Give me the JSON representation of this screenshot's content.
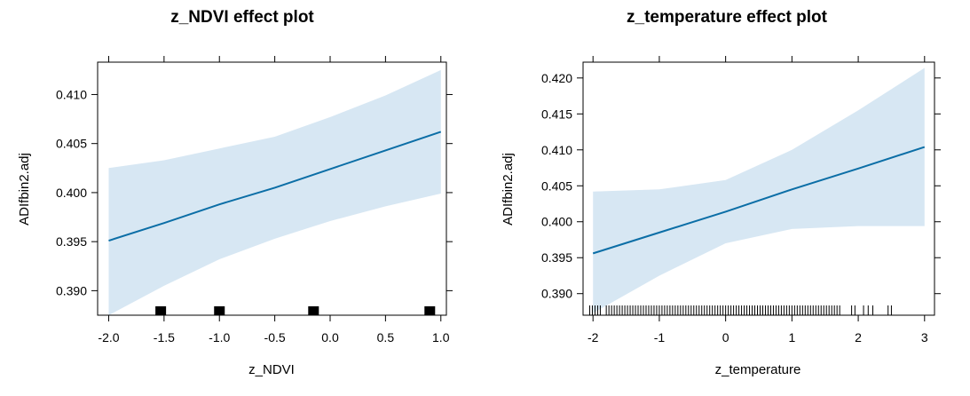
{
  "colors": {
    "band": "#d7e7f3",
    "line": "#0b6ea6",
    "rug": "#000000"
  },
  "chart_data": [
    {
      "type": "line",
      "title": "z_NDVI effect plot",
      "xlabel": "z_NDVI",
      "ylabel": "ADIfbin2.adj",
      "xlim": [
        -2.1,
        1.05
      ],
      "ylim": [
        0.3875,
        0.4133
      ],
      "xticks": [
        -2.0,
        -1.5,
        -1.0,
        -0.5,
        0.0,
        0.5,
        1.0
      ],
      "xtick_labels": [
        "-2.0",
        "-1.5",
        "-1.0",
        "-0.5",
        "0.0",
        "0.5",
        "1.0"
      ],
      "yticks": [
        0.39,
        0.395,
        0.4,
        0.405,
        0.41
      ],
      "ytick_labels": [
        "0.390",
        "0.395",
        "0.400",
        "0.405",
        "0.410"
      ],
      "series": [
        {
          "x": [
            -2.0,
            -1.5,
            -1.0,
            -0.5,
            0.0,
            0.5,
            1.0
          ],
          "values": [
            0.3951,
            0.3969,
            0.3988,
            0.4005,
            0.4024,
            0.4043,
            0.4062
          ],
          "lower": [
            0.3875,
            0.3905,
            0.3932,
            0.3953,
            0.3971,
            0.3986,
            0.3999
          ],
          "upper": [
            0.4025,
            0.4033,
            0.4045,
            0.4057,
            0.4077,
            0.4099,
            0.4125
          ]
        }
      ],
      "rug": [
        -1.53,
        -1.0,
        -0.15,
        0.9
      ]
    },
    {
      "type": "line",
      "title": "z_temperature effect plot",
      "xlabel": "z_temperature",
      "ylabel": "ADIfbin2.adj",
      "xlim": [
        -2.15,
        3.15
      ],
      "ylim": [
        0.387,
        0.4222
      ],
      "xticks": [
        -2,
        -1,
        0,
        1,
        2,
        3
      ],
      "xtick_labels": [
        "-2",
        "-1",
        "0",
        "1",
        "2",
        "3"
      ],
      "yticks": [
        0.39,
        0.395,
        0.4,
        0.405,
        0.41,
        0.415,
        0.42
      ],
      "ytick_labels": [
        "0.390",
        "0.395",
        "0.400",
        "0.405",
        "0.410",
        "0.415",
        "0.420"
      ],
      "series": [
        {
          "x": [
            -2,
            -1,
            0,
            1,
            2,
            3
          ],
          "values": [
            0.3956,
            0.3985,
            0.4014,
            0.4045,
            0.4074,
            0.4104
          ],
          "lower": [
            0.3873,
            0.3925,
            0.397,
            0.399,
            0.3994,
            0.3994
          ],
          "upper": [
            0.4042,
            0.4045,
            0.4058,
            0.41,
            0.4155,
            0.4214
          ]
        }
      ],
      "rug": [
        -2.05,
        -2.01,
        -1.97,
        -1.93,
        -1.89,
        -1.8,
        -1.76,
        -1.72,
        -1.68,
        -1.64,
        -1.6,
        -1.56,
        -1.52,
        -1.48,
        -1.44,
        -1.4,
        -1.36,
        -1.32,
        -1.28,
        -1.24,
        -1.2,
        -1.16,
        -1.12,
        -1.08,
        -1.04,
        -1.0,
        -0.96,
        -0.92,
        -0.88,
        -0.84,
        -0.8,
        -0.76,
        -0.72,
        -0.68,
        -0.64,
        -0.6,
        -0.56,
        -0.52,
        -0.48,
        -0.44,
        -0.4,
        -0.36,
        -0.32,
        -0.28,
        -0.24,
        -0.2,
        -0.16,
        -0.12,
        -0.08,
        -0.04,
        0.0,
        0.04,
        0.08,
        0.12,
        0.16,
        0.2,
        0.24,
        0.28,
        0.32,
        0.36,
        0.4,
        0.44,
        0.48,
        0.52,
        0.56,
        0.6,
        0.64,
        0.68,
        0.72,
        0.76,
        0.8,
        0.84,
        0.88,
        0.92,
        0.96,
        1.0,
        1.04,
        1.08,
        1.12,
        1.16,
        1.2,
        1.24,
        1.28,
        1.32,
        1.36,
        1.4,
        1.44,
        1.48,
        1.52,
        1.56,
        1.6,
        1.64,
        1.68,
        1.72,
        1.9,
        1.95,
        2.08,
        2.15,
        2.22,
        2.45,
        2.5
      ]
    }
  ]
}
